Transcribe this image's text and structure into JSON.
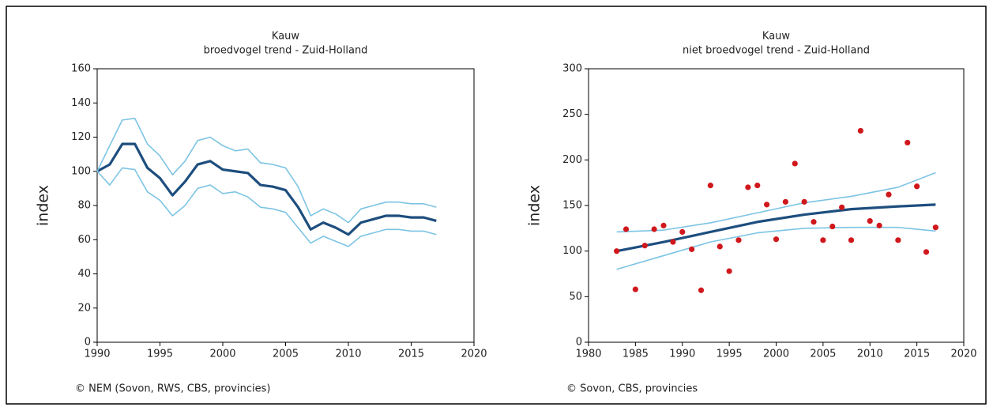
{
  "chart_data": [
    {
      "type": "line",
      "title": "Kauw",
      "subtitle": "broedvogel trend - Zuid-Holland",
      "y_label": "index",
      "source": "© NEM (Sovon, RWS, CBS, provincies)",
      "x": [
        1990,
        1991,
        1992,
        1993,
        1994,
        1995,
        1996,
        1997,
        1998,
        1999,
        2000,
        2001,
        2002,
        2003,
        2004,
        2005,
        2006,
        2007,
        2008,
        2009,
        2010,
        2011,
        2012,
        2013,
        2014,
        2015,
        2016,
        2017
      ],
      "series": [
        {
          "color": "#1d4e7e",
          "values": [
            100,
            104,
            116,
            116,
            102,
            96,
            86,
            94,
            104,
            106,
            101,
            100,
            99,
            92,
            91,
            89,
            79,
            66,
            70,
            67,
            63,
            70,
            72,
            74,
            74,
            73,
            73,
            71
          ]
        },
        {
          "color": "#7cc4e4",
          "values": [
            100,
            115,
            130,
            131,
            116,
            109,
            98,
            106,
            118,
            120,
            115,
            112,
            113,
            105,
            104,
            102,
            91,
            74,
            78,
            75,
            70,
            78,
            80,
            82,
            82,
            81,
            81,
            79
          ]
        },
        {
          "color": "#7cc4e4",
          "values": [
            100,
            92,
            102,
            101,
            88,
            83,
            74,
            80,
            90,
            92,
            87,
            88,
            85,
            79,
            78,
            76,
            67,
            58,
            62,
            59,
            56,
            62,
            64,
            66,
            66,
            65,
            65,
            63
          ]
        }
      ],
      "xlim": [
        1990,
        2020
      ],
      "xticks": [
        1990,
        1995,
        2000,
        2005,
        2010,
        2015,
        2020
      ],
      "ylim": [
        0,
        160
      ],
      "yticks": [
        0,
        20,
        40,
        60,
        80,
        100,
        120,
        140,
        160
      ]
    },
    {
      "type": "scatter",
      "title": "Kauw",
      "subtitle": "niet broedvogel trend - Zuid-Holland",
      "y_label": "index",
      "source": "© Sovon, CBS, provincies",
      "x": [
        1983,
        1984,
        1985,
        1986,
        1987,
        1988,
        1989,
        1990,
        1991,
        1992,
        1993,
        1994,
        1995,
        1996,
        1997,
        1998,
        1999,
        2000,
        2001,
        2002,
        2003,
        2004,
        2005,
        2006,
        2007,
        2008,
        2009,
        2010,
        2011,
        2012,
        2013,
        2014,
        2015,
        2016,
        2017
      ],
      "values": [
        100,
        124,
        58,
        106,
        124,
        128,
        110,
        121,
        102,
        57,
        172,
        105,
        78,
        112,
        170,
        172,
        151,
        113,
        154,
        196,
        154,
        132,
        112,
        127,
        148,
        112,
        232,
        133,
        128,
        162,
        112,
        219,
        171,
        99,
        126
      ],
      "color": "#d0181c",
      "series": [
        {
          "color": "#1d4e7e",
          "x": [
            1983,
            1988,
            1993,
            1998,
            2003,
            2008,
            2013,
            2017
          ],
          "values": [
            100,
            110,
            121,
            132,
            140,
            146,
            149,
            151
          ]
        },
        {
          "color": "#7cc4e4",
          "x": [
            1983,
            1988,
            1993,
            1998,
            2003,
            2008,
            2013,
            2017
          ],
          "values": [
            121,
            123,
            131,
            142,
            153,
            160,
            170,
            186
          ]
        },
        {
          "color": "#7cc4e4",
          "x": [
            1983,
            1988,
            1993,
            1998,
            2003,
            2008,
            2013,
            2017
          ],
          "values": [
            80,
            95,
            110,
            120,
            125,
            126,
            126,
            122
          ]
        }
      ],
      "xlim": [
        1980,
        2020
      ],
      "xticks": [
        1980,
        1985,
        1990,
        1995,
        2000,
        2005,
        2010,
        2015,
        2020
      ],
      "ylim": [
        0,
        300
      ],
      "yticks": [
        0,
        50,
        100,
        150,
        200,
        250,
        300
      ]
    }
  ]
}
